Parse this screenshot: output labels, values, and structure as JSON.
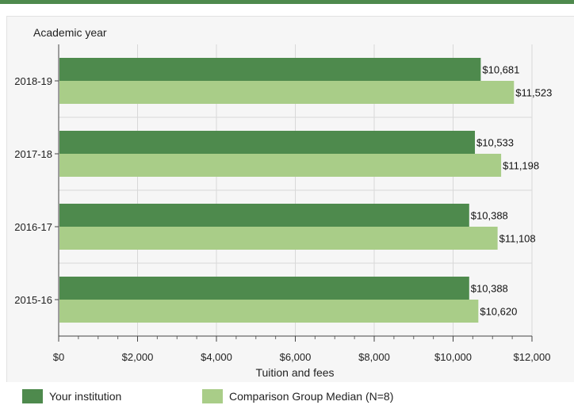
{
  "chart_data": {
    "type": "bar",
    "orientation": "horizontal",
    "ylabel": "Academic year",
    "xlabel": "Tuition and fees",
    "categories": [
      "2018-19",
      "2017-18",
      "2016-17",
      "2015-16"
    ],
    "series": [
      {
        "name": "Your institution",
        "color": "#4e8a4d",
        "values": [
          10681,
          10533,
          10388,
          10388
        ],
        "labels": [
          "$10,681",
          "$10,533",
          "$10,388",
          "$10,388"
        ]
      },
      {
        "name": "Comparison Group Median (N=8)",
        "color": "#a9cd88",
        "values": [
          11523,
          11198,
          11108,
          10620
        ],
        "labels": [
          "$11,523",
          "$11,198",
          "$11,108",
          "$10,620"
        ]
      }
    ],
    "xlim": [
      0,
      12000
    ],
    "xticks": [
      0,
      2000,
      4000,
      6000,
      8000,
      10000,
      12000
    ],
    "xtick_labels": [
      "$0",
      "$2,000",
      "$4,000",
      "$6,000",
      "$8,000",
      "$10,000",
      "$12,000"
    ],
    "grid": true,
    "legend_position": "bottom"
  },
  "colors": {
    "accent": "#4e8a4d",
    "light": "#a9cd88"
  }
}
